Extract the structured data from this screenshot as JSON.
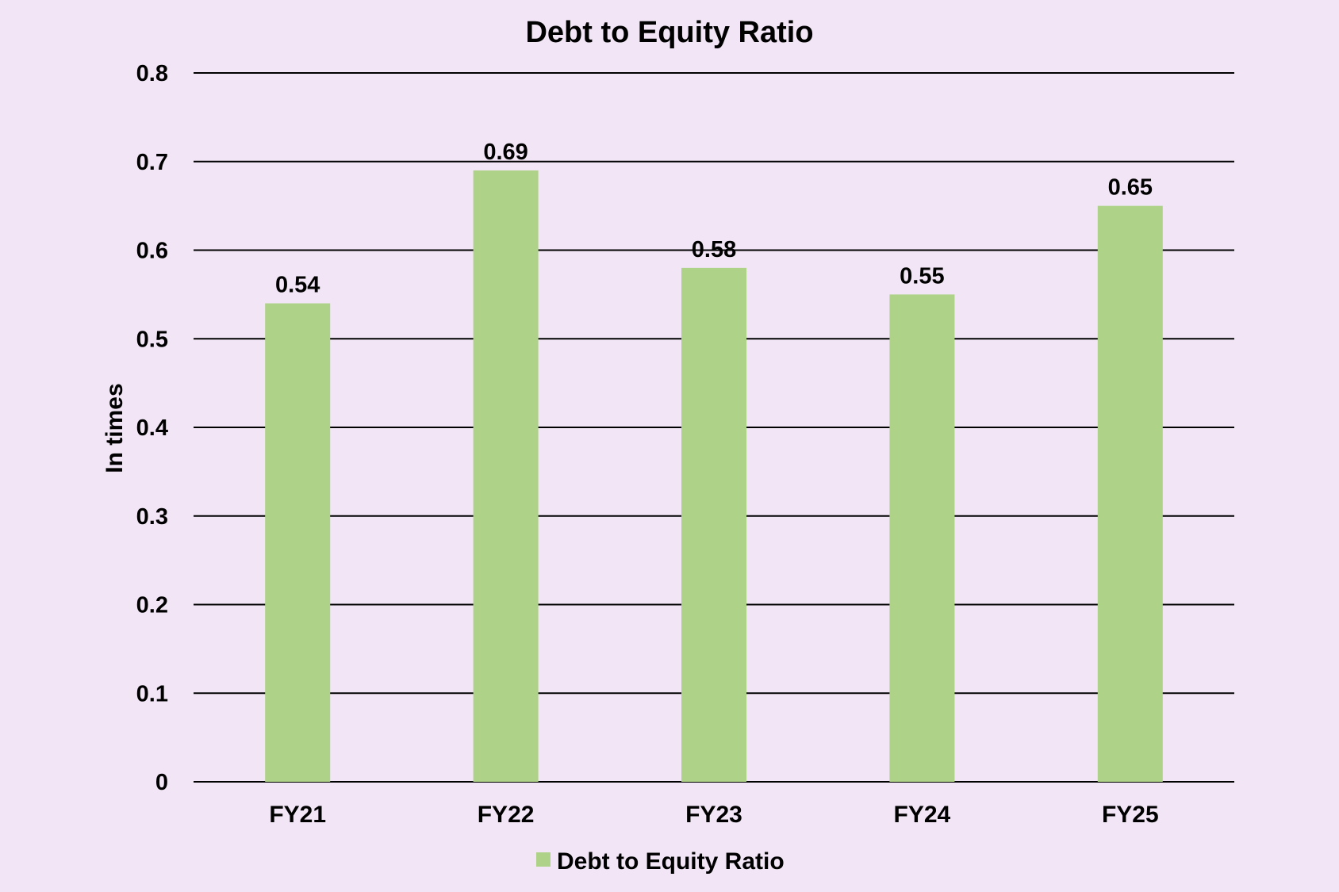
{
  "chart_data": {
    "type": "bar",
    "title": "Debt to Equity Ratio",
    "xlabel": "",
    "ylabel": "In times",
    "categories": [
      "FY21",
      "FY22",
      "FY23",
      "FY24",
      "FY25"
    ],
    "series": [
      {
        "name": "Debt to Equity Ratio",
        "values": [
          0.54,
          0.69,
          0.58,
          0.55,
          0.65
        ],
        "labels": [
          "0.54",
          "0.69",
          "0.58",
          "0.55",
          "0.65"
        ]
      }
    ],
    "ylim": [
      0,
      0.8
    ],
    "yticks": [
      "0",
      "0.1",
      "0.2",
      "0.3",
      "0.4",
      "0.5",
      "0.6",
      "0.7",
      "0.8"
    ],
    "grid": true,
    "legend_position": "bottom",
    "colors": {
      "background": "#f2e6f6",
      "bar": "#aed388",
      "text": "#000000",
      "grid": "#000000"
    }
  }
}
